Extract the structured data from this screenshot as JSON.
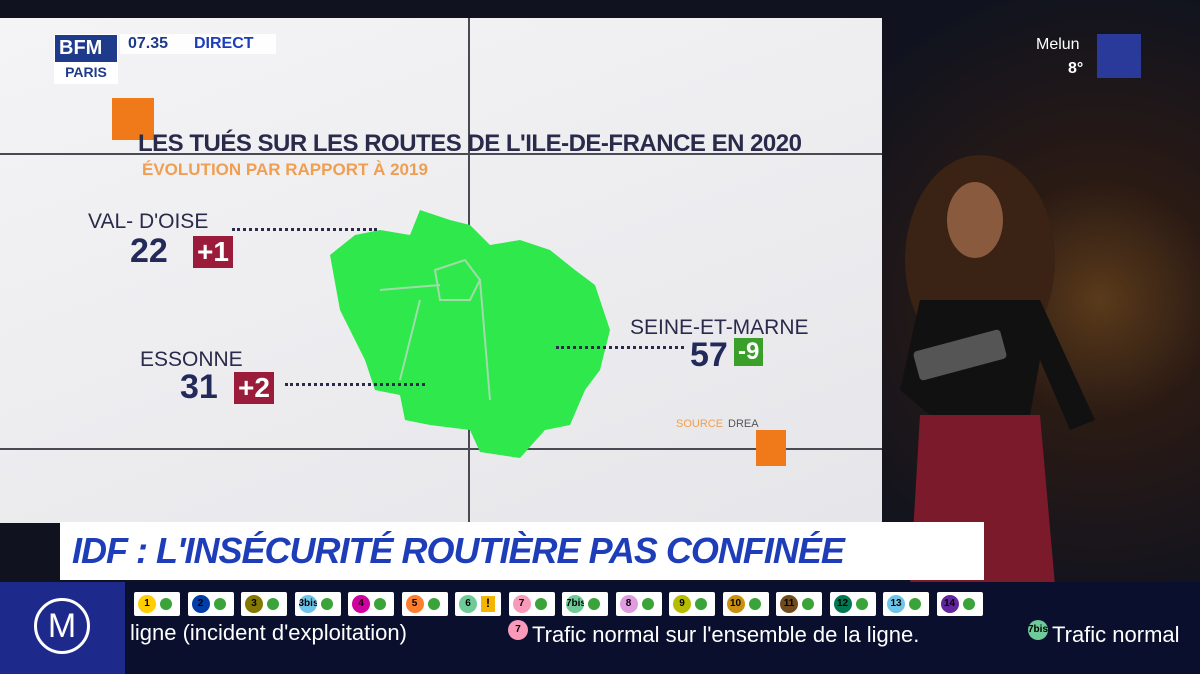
{
  "channel": {
    "logo_top": "BFM",
    "logo_bottom": "PARIS",
    "time": "07.35",
    "status": "DIRECT"
  },
  "weather": {
    "city": "Melun",
    "temperature": "8°"
  },
  "screen": {
    "title": "LES TUÉS SUR LES ROUTES DE L'ILE-DE-FRANCE EN 2020",
    "subtitle": "ÉVOLUTION PAR RAPPORT À 2019",
    "regions": [
      {
        "name": "VAL- D'OISE",
        "count": "22",
        "change": "+1",
        "change_color": "#9b1b3a"
      },
      {
        "name": "ESSONNE",
        "count": "31",
        "change": "+2",
        "change_color": "#9b1b3a"
      },
      {
        "name": "SEINE-ET-MARNE",
        "count": "57",
        "change": "-9",
        "change_color": "#3aa02a"
      }
    ],
    "source_label": "SOURCE",
    "source": "DREA"
  },
  "headline": "IDF : L'INSÉCURITÉ ROUTIÈRE PAS CONFINÉE",
  "ticker": {
    "logo": "M",
    "lines": [
      {
        "label": "1",
        "color": "#ffcd00"
      },
      {
        "label": "2",
        "color": "#003ca6"
      },
      {
        "label": "3",
        "color": "#837902"
      },
      {
        "label": "3bis",
        "color": "#6ec4e8"
      },
      {
        "label": "4",
        "color": "#cf009e"
      },
      {
        "label": "5",
        "color": "#ff7e2e"
      },
      {
        "label": "6",
        "color": "#6eca97",
        "alert": "!"
      },
      {
        "label": "7",
        "color": "#fa9aba"
      },
      {
        "label": "7bis",
        "color": "#6eca97"
      },
      {
        "label": "8",
        "color": "#e19bdf"
      },
      {
        "label": "9",
        "color": "#b6bd00"
      },
      {
        "label": "10",
        "color": "#c9910d"
      },
      {
        "label": "11",
        "color": "#704b1c"
      },
      {
        "label": "12",
        "color": "#007852"
      },
      {
        "label": "13",
        "color": "#6ec4e8"
      },
      {
        "label": "14",
        "color": "#62259d"
      }
    ],
    "messages": [
      {
        "text": "ligne (incident d'exploitation)"
      },
      {
        "line": "7",
        "color": "#fa9aba",
        "text": "Trafic normal sur l'ensemble de la ligne."
      },
      {
        "line": "7bis",
        "color": "#6eca97",
        "text": "Trafic normal"
      }
    ]
  }
}
